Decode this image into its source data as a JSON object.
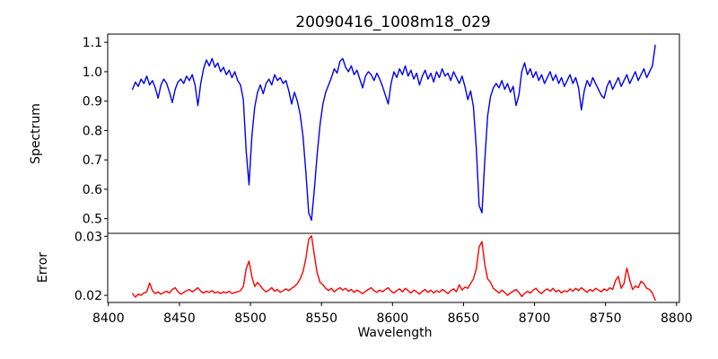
{
  "figure": {
    "background": "#ffffff",
    "axis_color": "#000000"
  },
  "chart_data": {
    "type": "line",
    "title": "20090416_1008m18_029",
    "xlabel": "Wavelength",
    "grid": false,
    "x_axis": {
      "lim": [
        8399.5,
        8802.0
      ],
      "tick_values": [
        8400,
        8450,
        8500,
        8550,
        8600,
        8650,
        8700,
        8750,
        8800
      ],
      "tick_labels": [
        "8400",
        "8450",
        "8500",
        "8550",
        "8600",
        "8650",
        "8700",
        "8750",
        "8800"
      ]
    },
    "panels": [
      {
        "name": "spectrum",
        "ylabel": "Spectrum",
        "ylim": [
          0.45,
          1.128
        ],
        "tick_values": [
          1.1,
          1.0,
          0.9,
          0.8,
          0.7,
          0.6,
          0.5
        ],
        "tick_labels": [
          "1.1",
          "1.0",
          "0.9",
          "0.8",
          "0.7",
          "0.6",
          "0.5"
        ],
        "series": {
          "name": "spectrum-flux",
          "color": "#0000ee",
          "line_width": 1.4,
          "x_start": 8417,
          "x_step": 2,
          "values": [
            0.94,
            0.965,
            0.95,
            0.975,
            0.96,
            0.985,
            0.955,
            0.97,
            0.945,
            0.91,
            0.955,
            0.975,
            0.96,
            0.93,
            0.895,
            0.94,
            0.965,
            0.975,
            0.96,
            0.985,
            0.97,
            0.99,
            0.955,
            0.885,
            0.96,
            1.01,
            1.04,
            1.02,
            1.045,
            1.015,
            1.03,
            1.0,
            1.015,
            0.99,
            1.005,
            0.98,
            1.0,
            0.97,
            0.955,
            0.905,
            0.73,
            0.615,
            0.78,
            0.88,
            0.93,
            0.955,
            0.925,
            0.96,
            0.975,
            0.955,
            0.99,
            0.97,
            0.98,
            0.96,
            0.97,
            0.935,
            0.89,
            0.93,
            0.9,
            0.855,
            0.78,
            0.66,
            0.52,
            0.495,
            0.6,
            0.72,
            0.82,
            0.89,
            0.93,
            0.955,
            0.98,
            1.01,
            0.995,
            1.035,
            1.045,
            1.015,
            1.0,
            1.02,
            0.99,
            1.005,
            0.975,
            0.945,
            0.985,
            1.0,
            0.99,
            0.97,
            0.995,
            0.975,
            0.95,
            0.92,
            0.89,
            0.96,
            1.0,
            0.98,
            1.01,
            0.99,
            1.02,
            0.985,
            1.005,
            0.975,
            0.995,
            0.955,
            0.985,
            1.005,
            0.975,
            0.995,
            0.965,
            1.0,
            0.98,
            1.01,
            0.985,
            0.995,
            0.97,
            1.0,
            0.98,
            0.96,
            0.985,
            0.95,
            0.905,
            0.935,
            0.88,
            0.74,
            0.545,
            0.52,
            0.7,
            0.85,
            0.915,
            0.945,
            0.96,
            0.945,
            0.97,
            0.94,
            0.96,
            0.93,
            0.95,
            0.885,
            0.92,
            1.0,
            1.03,
            0.99,
            1.01,
            0.98,
            1.0,
            0.97,
            0.99,
            0.96,
            0.98,
            1.0,
            0.97,
            0.99,
            0.96,
            0.98,
            0.95,
            0.97,
            0.99,
            0.96,
            0.98,
            0.945,
            0.87,
            0.935,
            0.97,
            0.95,
            0.98,
            0.96,
            0.94,
            0.92,
            0.91,
            0.95,
            0.97,
            0.94,
            0.96,
            0.98,
            0.95,
            0.97,
            0.99,
            0.96,
            0.98,
            1.0,
            0.97,
            0.99,
            1.01,
            0.98,
            1.0,
            1.02,
            1.09
          ]
        }
      },
      {
        "name": "error",
        "ylabel": "Error",
        "ylim": [
          0.0188,
          0.0305
        ],
        "tick_values": [
          0.03,
          0.02
        ],
        "tick_labels": [
          "0.03",
          "0.02"
        ],
        "series": {
          "name": "error-sigma",
          "color": "#ff0000",
          "line_width": 1.4,
          "x_start": 8417,
          "x_step": 2,
          "values": [
            0.0203,
            0.0197,
            0.0202,
            0.02,
            0.0204,
            0.0206,
            0.0221,
            0.0208,
            0.0203,
            0.0206,
            0.0202,
            0.0205,
            0.0207,
            0.0204,
            0.021,
            0.0213,
            0.0206,
            0.0202,
            0.0205,
            0.0208,
            0.021,
            0.0206,
            0.0209,
            0.0213,
            0.0207,
            0.0204,
            0.0207,
            0.0205,
            0.0208,
            0.0204,
            0.0206,
            0.0203,
            0.0206,
            0.0204,
            0.0207,
            0.0203,
            0.0205,
            0.0206,
            0.0208,
            0.0215,
            0.0245,
            0.0258,
            0.0232,
            0.0215,
            0.0222,
            0.0216,
            0.021,
            0.0206,
            0.0209,
            0.0213,
            0.0207,
            0.021,
            0.0205,
            0.0208,
            0.0211,
            0.0208,
            0.0212,
            0.0215,
            0.022,
            0.0228,
            0.024,
            0.0262,
            0.0295,
            0.0301,
            0.0268,
            0.0238,
            0.0222,
            0.0218,
            0.0212,
            0.0208,
            0.0212,
            0.0206,
            0.021,
            0.0213,
            0.0209,
            0.0212,
            0.0207,
            0.021,
            0.0205,
            0.0209,
            0.0206,
            0.0203,
            0.0207,
            0.021,
            0.0213,
            0.0208,
            0.0205,
            0.0209,
            0.0206,
            0.021,
            0.0213,
            0.0207,
            0.0204,
            0.0208,
            0.0211,
            0.0206,
            0.0212,
            0.0208,
            0.0204,
            0.0209,
            0.0206,
            0.0202,
            0.0207,
            0.021,
            0.0205,
            0.0209,
            0.0204,
            0.0208,
            0.0205,
            0.021,
            0.0207,
            0.0203,
            0.0208,
            0.0211,
            0.0206,
            0.0218,
            0.0209,
            0.0214,
            0.0212,
            0.022,
            0.0228,
            0.0245,
            0.0282,
            0.0291,
            0.0252,
            0.0228,
            0.0222,
            0.0212,
            0.0208,
            0.0204,
            0.0209,
            0.0205,
            0.02,
            0.0204,
            0.0207,
            0.021,
            0.0205,
            0.0198,
            0.0203,
            0.0207,
            0.0204,
            0.0209,
            0.0212,
            0.0206,
            0.0203,
            0.0208,
            0.0211,
            0.0207,
            0.0212,
            0.0206,
            0.0209,
            0.0204,
            0.0208,
            0.0206,
            0.0211,
            0.0207,
            0.0212,
            0.0208,
            0.0213,
            0.0209,
            0.0205,
            0.021,
            0.0207,
            0.0212,
            0.0209,
            0.0206,
            0.0211,
            0.0208,
            0.0213,
            0.021,
            0.0225,
            0.0232,
            0.0212,
            0.022,
            0.0246,
            0.0226,
            0.021,
            0.0216,
            0.0213,
            0.0224,
            0.022,
            0.0212,
            0.021,
            0.0204,
            0.0192
          ]
        }
      }
    ]
  }
}
